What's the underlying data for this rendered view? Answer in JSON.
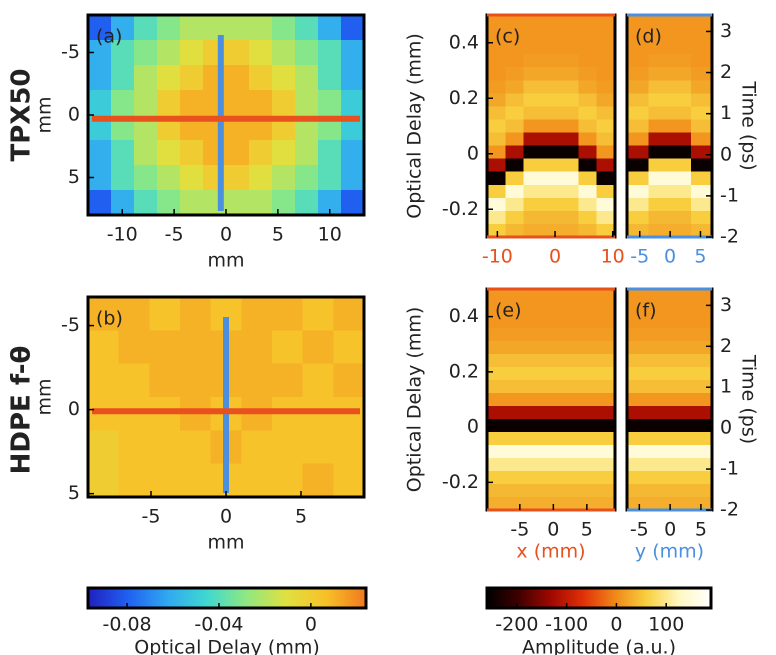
{
  "row_labels": [
    "TPX50",
    "HDPE f-θ"
  ],
  "chart_data": [
    {
      "type": "heatmap",
      "label": "(a)",
      "xlabel": "mm",
      "ylabel": "mm",
      "xlim": [
        -13.3,
        13.3
      ],
      "ylim": [
        -8,
        8
      ],
      "y_reversed": true,
      "xticks": [
        -10,
        -5,
        0,
        5,
        10
      ],
      "yticks": [
        -5,
        0,
        5
      ],
      "colorbar": 6,
      "lines": [
        {
          "orientation": "vertical",
          "value": -0.5,
          "color": "#4a8fe0"
        },
        {
          "orientation": "horizontal",
          "value": 0.3,
          "color": "#e8501e"
        }
      ],
      "z": [
        [
          -0.08,
          -0.06,
          -0.04,
          -0.03,
          -0.02,
          -0.02,
          -0.02,
          -0.02,
          -0.03,
          -0.04,
          -0.06,
          -0.08
        ],
        [
          -0.06,
          -0.04,
          -0.03,
          -0.02,
          -0.01,
          0,
          0,
          -0.01,
          -0.02,
          -0.03,
          -0.04,
          -0.06
        ],
        [
          -0.06,
          -0.04,
          -0.02,
          -0.01,
          0,
          0.01,
          0.01,
          0,
          -0.01,
          -0.02,
          -0.04,
          -0.06
        ],
        [
          -0.05,
          -0.03,
          -0.02,
          0,
          0.01,
          0.01,
          0.01,
          0.01,
          0,
          -0.02,
          -0.03,
          -0.05
        ],
        [
          -0.05,
          -0.03,
          -0.02,
          0,
          0.01,
          0.01,
          0.01,
          0.01,
          0,
          -0.02,
          -0.03,
          -0.05
        ],
        [
          -0.06,
          -0.04,
          -0.02,
          -0.01,
          0,
          0.01,
          0.01,
          0,
          -0.01,
          -0.02,
          -0.04,
          -0.06
        ],
        [
          -0.06,
          -0.04,
          -0.03,
          -0.02,
          -0.01,
          0,
          0,
          -0.01,
          -0.02,
          -0.03,
          -0.04,
          -0.06
        ],
        [
          -0.08,
          -0.06,
          -0.04,
          -0.03,
          -0.02,
          -0.02,
          -0.02,
          -0.02,
          -0.03,
          -0.04,
          -0.06,
          -0.08
        ]
      ]
    },
    {
      "type": "heatmap",
      "label": "(b)",
      "xlabel": "mm",
      "ylabel": "mm",
      "xlim": [
        -9.2,
        9.2
      ],
      "ylim": [
        -6.7,
        5.2
      ],
      "y_reversed": true,
      "xticks": [
        -5,
        0,
        5
      ],
      "yticks": [
        -5,
        0,
        5
      ],
      "colorbar": 6,
      "lines": [
        {
          "orientation": "vertical",
          "value": 0,
          "color": "#4a8fe0"
        },
        {
          "orientation": "horizontal",
          "value": 0.1,
          "color": "#e8501e"
        }
      ],
      "z": [
        [
          0.01,
          0.01,
          0.005,
          0.01,
          0.005,
          0.01,
          0.01,
          0.005,
          0.01
        ],
        [
          0.005,
          0.01,
          0.01,
          0.01,
          0.01,
          0.01,
          0.005,
          0.01,
          0.005
        ],
        [
          0.005,
          0.005,
          0.01,
          0.01,
          0.01,
          0.01,
          0.01,
          0.005,
          0.01
        ],
        [
          0.005,
          0.005,
          0.005,
          0.01,
          0.005,
          0.01,
          0.005,
          0.005,
          0.005
        ],
        [
          0,
          0.005,
          0.005,
          0.005,
          0.01,
          0.005,
          0.005,
          0.005,
          0.005
        ],
        [
          0,
          0.005,
          0.005,
          0.005,
          0.005,
          0.005,
          0.005,
          0.01,
          0.005
        ]
      ]
    },
    {
      "type": "heatmap",
      "label": "(c)",
      "ylabel": "Optical Delay (mm)",
      "xlim": [
        -11.8,
        10.4
      ],
      "ylim": [
        -0.3,
        0.5
      ],
      "xticks": [
        -10,
        0,
        10
      ],
      "yticks": [
        -0.2,
        0,
        0.2,
        0.4
      ],
      "colorbar": 7,
      "xtick_color": "#e8501e",
      "frame_color": "#e8501e",
      "z": [
        [
          10,
          10,
          10,
          10,
          10,
          10,
          10
        ],
        [
          10,
          10,
          10,
          10,
          10,
          10,
          10
        ],
        [
          10,
          10,
          10,
          10,
          10,
          10,
          10
        ],
        [
          10,
          10,
          15,
          15,
          15,
          10,
          10
        ],
        [
          10,
          15,
          25,
          25,
          25,
          15,
          10
        ],
        [
          15,
          25,
          45,
          45,
          45,
          25,
          15
        ],
        [
          25,
          45,
          60,
          60,
          60,
          45,
          25
        ],
        [
          45,
          60,
          45,
          45,
          45,
          60,
          45
        ],
        [
          60,
          45,
          10,
          10,
          10,
          45,
          60
        ],
        [
          45,
          10,
          -120,
          -120,
          -120,
          10,
          45
        ],
        [
          10,
          -120,
          -250,
          -250,
          -250,
          -120,
          10
        ],
        [
          -120,
          -250,
          60,
          60,
          60,
          -250,
          -120
        ],
        [
          -250,
          60,
          150,
          150,
          150,
          60,
          -250
        ],
        [
          60,
          150,
          100,
          100,
          100,
          150,
          60
        ],
        [
          150,
          100,
          60,
          60,
          60,
          100,
          150
        ],
        [
          100,
          60,
          40,
          40,
          40,
          60,
          100
        ],
        [
          60,
          40,
          30,
          30,
          30,
          40,
          60
        ]
      ]
    },
    {
      "type": "heatmap",
      "label": "(d)",
      "y2label": "Time (ps)",
      "xlim": [
        -7.1,
        6.9
      ],
      "ylim": [
        -0.3,
        0.5
      ],
      "y2lim": [
        -2,
        3.4
      ],
      "xticks": [
        -5,
        0,
        5
      ],
      "y2ticks": [
        -2,
        -1,
        0,
        1,
        2,
        3
      ],
      "colorbar": 7,
      "xtick_color": "#4a8fe0",
      "frame_color": "#4a8fe0",
      "z": [
        [
          10,
          10,
          10,
          10
        ],
        [
          10,
          10,
          10,
          10
        ],
        [
          10,
          10,
          10,
          10
        ],
        [
          10,
          15,
          15,
          10
        ],
        [
          15,
          25,
          25,
          15
        ],
        [
          25,
          45,
          45,
          25
        ],
        [
          45,
          60,
          60,
          45
        ],
        [
          60,
          45,
          45,
          60
        ],
        [
          45,
          10,
          10,
          45
        ],
        [
          10,
          -120,
          -120,
          10
        ],
        [
          -120,
          -250,
          -250,
          -120
        ],
        [
          -250,
          60,
          60,
          -250
        ],
        [
          60,
          150,
          150,
          60
        ],
        [
          150,
          100,
          100,
          150
        ],
        [
          100,
          60,
          60,
          100
        ],
        [
          60,
          40,
          40,
          60
        ],
        [
          40,
          30,
          30,
          40
        ]
      ]
    },
    {
      "type": "heatmap",
      "label": "(e)",
      "ylabel": "Optical Delay (mm)",
      "xlabel": "x (mm)",
      "xlabel_color": "#e8501e",
      "xlim": [
        -9.9,
        9.2
      ],
      "ylim": [
        -0.3,
        0.5
      ],
      "xticks": [
        -5,
        0,
        5
      ],
      "yticks": [
        -0.2,
        0,
        0.2,
        0.4
      ],
      "colorbar": 7,
      "frame_color": "#e8501e",
      "z": [
        [
          10,
          10,
          10,
          10,
          10,
          10
        ],
        [
          10,
          10,
          10,
          10,
          10,
          10
        ],
        [
          10,
          10,
          10,
          10,
          10,
          10
        ],
        [
          15,
          15,
          15,
          15,
          15,
          15
        ],
        [
          25,
          25,
          25,
          25,
          25,
          25
        ],
        [
          45,
          45,
          45,
          45,
          45,
          45
        ],
        [
          60,
          60,
          60,
          60,
          60,
          60
        ],
        [
          45,
          45,
          45,
          45,
          45,
          45
        ],
        [
          10,
          10,
          10,
          10,
          10,
          10
        ],
        [
          -120,
          -120,
          -120,
          -120,
          -120,
          -120
        ],
        [
          -250,
          -250,
          -250,
          -250,
          -250,
          -250
        ],
        [
          60,
          60,
          60,
          60,
          60,
          60
        ],
        [
          150,
          150,
          150,
          150,
          150,
          150
        ],
        [
          100,
          100,
          100,
          100,
          100,
          100
        ],
        [
          60,
          60,
          60,
          60,
          60,
          60
        ],
        [
          40,
          40,
          40,
          40,
          40,
          40
        ],
        [
          30,
          30,
          30,
          30,
          30,
          30
        ]
      ]
    },
    {
      "type": "heatmap",
      "label": "(f)",
      "y2label": "Time (ps)",
      "xlabel": "y (mm)",
      "xlabel_color": "#4a8fe0",
      "xlim": [
        -7.0,
        6.8
      ],
      "ylim": [
        -0.3,
        0.5
      ],
      "y2lim": [
        -2,
        3.4
      ],
      "xticks": [
        -5,
        0,
        5
      ],
      "y2ticks": [
        -2,
        -1,
        0,
        1,
        2,
        3
      ],
      "colorbar": 7,
      "frame_color": "#4a8fe0",
      "z": [
        [
          10,
          10,
          10,
          10
        ],
        [
          10,
          10,
          10,
          10
        ],
        [
          10,
          10,
          10,
          10
        ],
        [
          15,
          15,
          15,
          15
        ],
        [
          25,
          25,
          25,
          25
        ],
        [
          45,
          45,
          45,
          45
        ],
        [
          60,
          60,
          60,
          60
        ],
        [
          45,
          45,
          45,
          45
        ],
        [
          10,
          10,
          10,
          10
        ],
        [
          -120,
          -120,
          -120,
          -120
        ],
        [
          -250,
          -250,
          -250,
          -250
        ],
        [
          60,
          60,
          60,
          60
        ],
        [
          150,
          150,
          150,
          150
        ],
        [
          100,
          100,
          100,
          100
        ],
        [
          60,
          60,
          60,
          60
        ],
        [
          40,
          40,
          40,
          40
        ],
        [
          30,
          30,
          30,
          30
        ]
      ]
    },
    {
      "type": "colorbar",
      "label": "Optical Delay (mm)",
      "clim": [
        -0.097,
        0.024
      ],
      "ticks": [
        -0.08,
        -0.04,
        0
      ],
      "colors": [
        "#2020c0",
        "#2060f0",
        "#30a8f0",
        "#40d8d0",
        "#90e880",
        "#e0e040",
        "#f8c028",
        "#f07820"
      ]
    },
    {
      "type": "colorbar",
      "label": "Amplitude (a.u.)",
      "clim": [
        -260,
        190
      ],
      "ticks": [
        -200,
        -100,
        0,
        100
      ],
      "colors": [
        "#000000",
        "#400000",
        "#a00800",
        "#e03008",
        "#f08818",
        "#f8d040",
        "#fff8c0",
        "#ffffff"
      ]
    }
  ]
}
